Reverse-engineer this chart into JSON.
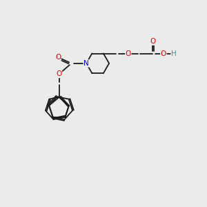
{
  "background_color": "#ebebeb",
  "bond_color": "#1a1a1a",
  "atom_colors": {
    "O": "#e00000",
    "N": "#0000e0",
    "H": "#4a9090",
    "C": "#1a1a1a"
  },
  "figsize": [
    3.0,
    3.0
  ],
  "dpi": 100,
  "lw": 1.3,
  "fontsize": 7.5
}
